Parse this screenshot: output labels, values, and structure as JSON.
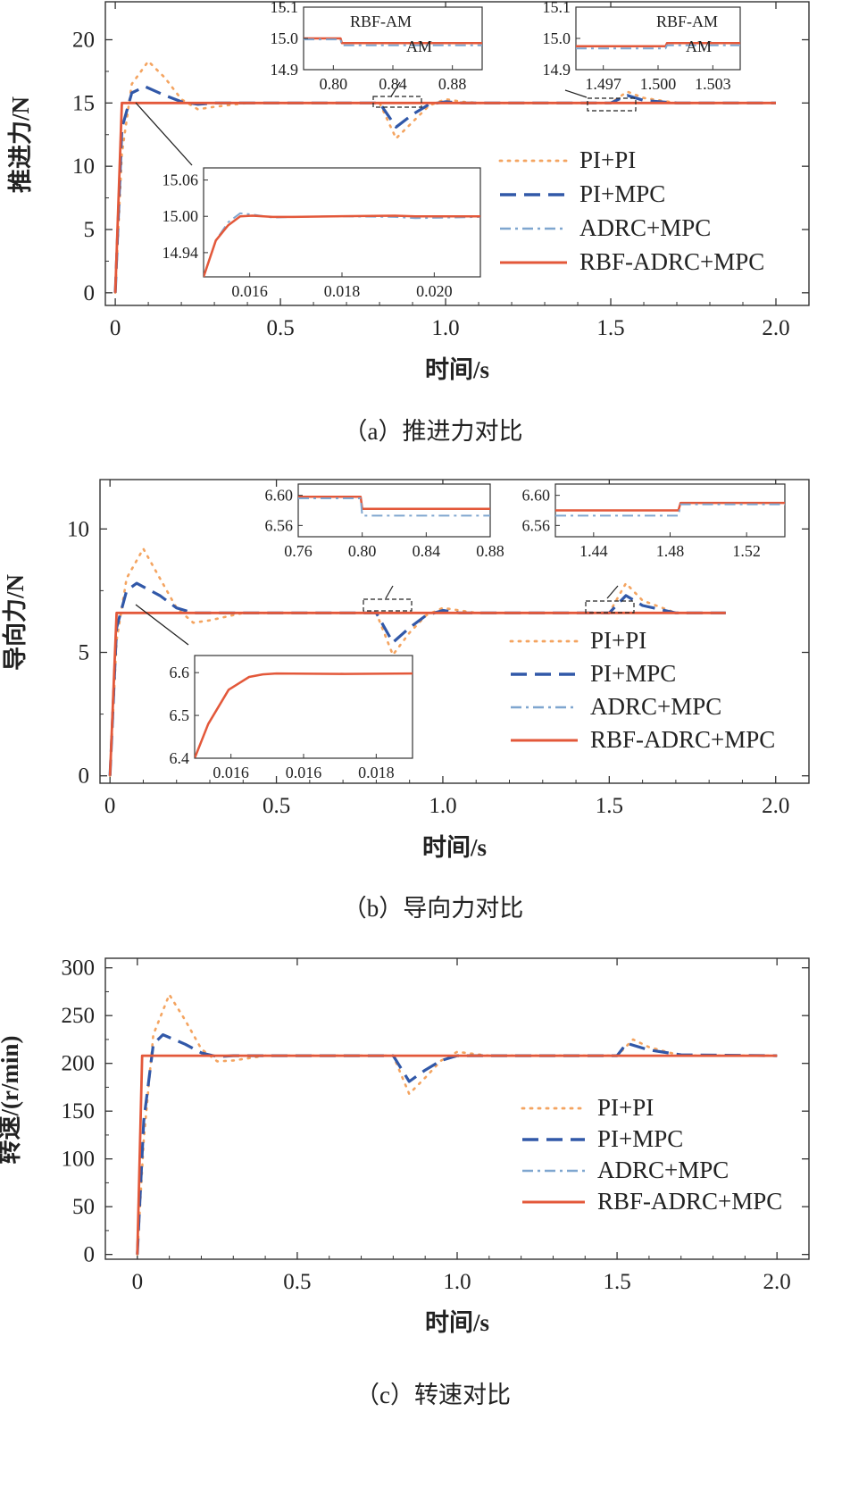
{
  "chart_data": [
    {
      "type": "line",
      "panel": "a",
      "caption": "（a）推进力对比",
      "xlabel": "时间/s",
      "ylabel": "推进力/N",
      "xlim": [
        -0.03,
        2.1
      ],
      "ylim": [
        -1,
        23
      ],
      "xticks": [
        "0",
        "0.5",
        "1.0",
        "1.5",
        "2.0"
      ],
      "yticks": [
        "0",
        "5",
        "10",
        "15",
        "20"
      ],
      "legend_position": "right-middle",
      "series": [
        {
          "name": "PI+PI",
          "color": "#f4a460",
          "x": [
            0,
            0.02,
            0.05,
            0.1,
            0.15,
            0.2,
            0.25,
            0.3,
            0.4,
            0.8,
            0.85,
            0.9,
            0.95,
            1.0,
            1.05,
            1.1,
            1.5,
            1.55,
            1.6,
            1.7,
            2.0
          ],
          "y": [
            0,
            11,
            16.5,
            18.3,
            17,
            15.3,
            14.5,
            14.7,
            15,
            15,
            12.2,
            13.5,
            14.8,
            15.3,
            15.1,
            15,
            15,
            15.9,
            15.4,
            15,
            15
          ]
        },
        {
          "name": "PI+MPC",
          "color": "#3158a8",
          "x": [
            0,
            0.02,
            0.05,
            0.09,
            0.15,
            0.2,
            0.25,
            0.3,
            0.8,
            0.85,
            0.9,
            0.95,
            1.0,
            1.05,
            1.1,
            1.5,
            1.55,
            1.6,
            1.7,
            2.0
          ],
          "y": [
            0,
            13,
            15.8,
            16.3,
            15.6,
            15.1,
            14.9,
            15,
            15,
            13.1,
            14.1,
            14.9,
            15.1,
            15,
            15,
            15,
            15.6,
            15.2,
            15,
            15
          ]
        },
        {
          "name": "ADRC+MPC",
          "color": "#7fa6cf",
          "x": [
            0,
            0.02,
            2.0
          ],
          "y": [
            0,
            15,
            15
          ]
        },
        {
          "name": "RBF-ADRC+MPC",
          "color": "#e3583a",
          "x": [
            0,
            0.02,
            2.0
          ],
          "y": [
            0,
            15,
            15
          ]
        }
      ],
      "insets": [
        {
          "annotations": [
            "RBF-AM",
            "AM"
          ],
          "xticks": [
            "0.80",
            "0.84",
            "0.88"
          ],
          "yticks": [
            "15.1",
            "15.0",
            "14.9"
          ],
          "xlim": [
            0.77,
            0.91
          ],
          "ylim": [
            14.9,
            15.1
          ],
          "series": [
            {
              "name": "RBF-ADRC+MPC",
              "x": [
                0.77,
                0.799,
                0.8,
                0.91
              ],
              "y": [
                15.0,
                15.0,
                14.985,
                14.985
              ]
            },
            {
              "name": "ADRC+MPC",
              "x": [
                0.77,
                0.799,
                0.8,
                0.91
              ],
              "y": [
                14.997,
                14.997,
                14.978,
                14.978
              ]
            }
          ]
        },
        {
          "annotations": [
            "RBF-AM",
            "AM"
          ],
          "xticks": [
            "1.497",
            "1.500",
            "1.503"
          ],
          "yticks": [
            "15.1",
            "15.0",
            "14.9"
          ],
          "xlim": [
            1.494,
            1.505
          ],
          "ylim": [
            14.9,
            15.1
          ],
          "series": [
            {
              "name": "RBF-ADRC+MPC",
              "x": [
                1.494,
                1.5,
                1.5001,
                1.505
              ],
              "y": [
                14.975,
                14.975,
                14.985,
                14.985
              ]
            },
            {
              "name": "ADRC+MPC",
              "x": [
                1.494,
                1.5,
                1.5001,
                1.505
              ],
              "y": [
                14.968,
                14.968,
                14.978,
                14.978
              ]
            }
          ]
        },
        {
          "xticks": [
            "0.016",
            "0.018",
            "0.020"
          ],
          "yticks": [
            "15.06",
            "15.00",
            "14.94"
          ],
          "xlim": [
            0.0138,
            0.0206
          ],
          "ylim": [
            14.9,
            15.08
          ],
          "series": [
            {
              "name": "ADRC+MPC",
              "x": [
                0.0138,
                0.0141,
                0.0144,
                0.0147,
                0.015,
                0.0155,
                0.016,
                0.017,
                0.0185,
                0.019,
                0.0206
              ],
              "y": [
                14.9,
                14.96,
                14.99,
                15.005,
                15.003,
                14.998,
                14.999,
                15.0,
                14.999,
                14.997,
                14.999
              ]
            },
            {
              "name": "RBF-ADRC+MPC",
              "x": [
                0.0138,
                0.0141,
                0.0144,
                0.0147,
                0.015,
                0.0155,
                0.016,
                0.017,
                0.0185,
                0.019,
                0.0206
              ],
              "y": [
                14.9,
                14.96,
                14.985,
                15.0,
                15.001,
                14.999,
                14.999,
                15.0,
                15.001,
                15.0,
                15.0
              ]
            }
          ]
        }
      ]
    },
    {
      "type": "line",
      "panel": "b",
      "caption": "（b）导向力对比",
      "xlabel": "时间/s",
      "ylabel": "导向力/N",
      "xlim": [
        -0.03,
        2.1
      ],
      "ylim": [
        -0.3,
        12
      ],
      "xticks": [
        "0",
        "0.5",
        "1.0",
        "1.5",
        "2.0"
      ],
      "yticks": [
        "0",
        "5",
        "10"
      ],
      "legend_position": "right-middle",
      "series": [
        {
          "name": "PI+PI",
          "color": "#f4a460",
          "x": [
            0,
            0.02,
            0.05,
            0.1,
            0.15,
            0.2,
            0.25,
            0.3,
            0.4,
            0.8,
            0.85,
            0.9,
            0.95,
            1.0,
            1.05,
            1.1,
            1.5,
            1.55,
            1.6,
            1.7,
            1.85
          ],
          "y": [
            0,
            5.5,
            8,
            9.2,
            8,
            6.8,
            6.2,
            6.3,
            6.6,
            6.6,
            4.9,
            5.8,
            6.5,
            6.8,
            6.7,
            6.6,
            6.6,
            7.8,
            7.1,
            6.6,
            6.6
          ]
        },
        {
          "name": "PI+MPC",
          "color": "#3158a8",
          "x": [
            0,
            0.02,
            0.05,
            0.08,
            0.15,
            0.2,
            0.25,
            0.3,
            0.8,
            0.85,
            0.9,
            0.95,
            1.0,
            1.05,
            1.5,
            1.55,
            1.6,
            1.7,
            1.85
          ],
          "y": [
            0,
            6,
            7.5,
            7.8,
            7.3,
            6.8,
            6.6,
            6.6,
            6.6,
            5.4,
            6.0,
            6.5,
            6.7,
            6.6,
            6.6,
            7.3,
            6.9,
            6.6,
            6.6
          ]
        },
        {
          "name": "ADRC+MPC",
          "color": "#7fa6cf",
          "x": [
            0,
            0.02,
            1.85
          ],
          "y": [
            0,
            6.6,
            6.6
          ]
        },
        {
          "name": "RBF-ADRC+MPC",
          "color": "#e3583a",
          "x": [
            0,
            0.02,
            1.85
          ],
          "y": [
            0,
            6.6,
            6.6
          ]
        }
      ],
      "insets": [
        {
          "xticks": [
            "0.76",
            "0.80",
            "0.84",
            "0.88"
          ],
          "yticks": [
            "6.60",
            "6.56"
          ],
          "xlim": [
            0.76,
            0.88
          ],
          "ylim": [
            6.545,
            6.615
          ],
          "series": [
            {
              "name": "RBF-ADRC+MPC",
              "x": [
                0.76,
                0.799,
                0.8,
                0.88
              ],
              "y": [
                6.598,
                6.598,
                6.582,
                6.582
              ]
            },
            {
              "name": "ADRC+MPC",
              "x": [
                0.76,
                0.799,
                0.8,
                0.88
              ],
              "y": [
                6.596,
                6.596,
                6.573,
                6.573
              ]
            }
          ]
        },
        {
          "xticks": [
            "1.44",
            "1.48",
            "1.52"
          ],
          "yticks": [
            "6.60",
            "6.56"
          ],
          "xlim": [
            1.44,
            1.55
          ],
          "ylim": [
            6.545,
            6.615
          ],
          "series": [
            {
              "name": "RBF-ADRC+MPC",
              "x": [
                1.44,
                1.499,
                1.5,
                1.55
              ],
              "y": [
                6.58,
                6.58,
                6.59,
                6.59
              ]
            },
            {
              "name": "ADRC+MPC",
              "x": [
                1.44,
                1.499,
                1.5,
                1.55
              ],
              "y": [
                6.573,
                6.573,
                6.588,
                6.588
              ]
            }
          ]
        },
        {
          "xticks": [
            "0.016",
            "0.016",
            "0.018"
          ],
          "yticks": [
            "6.6",
            "6.5",
            "6.4"
          ],
          "xlim": [
            0.0148,
            0.018
          ],
          "ylim": [
            6.4,
            6.64
          ],
          "series": [
            {
              "name": "RBF-ADRC+MPC",
              "x": [
                0.0148,
                0.015,
                0.0153,
                0.0156,
                0.0158,
                0.016,
                0.017,
                0.018
              ],
              "y": [
                6.4,
                6.48,
                6.56,
                6.59,
                6.596,
                6.598,
                6.597,
                6.598
              ]
            }
          ]
        }
      ]
    },
    {
      "type": "line",
      "panel": "c",
      "caption": "（c）转速对比",
      "xlabel": "时间/s",
      "ylabel": "转速/(r/min)",
      "xlim": [
        -0.1,
        2.1
      ],
      "ylim": [
        -5,
        310
      ],
      "xticks": [
        "0",
        "0.5",
        "1.0",
        "1.5",
        "2.0"
      ],
      "yticks": [
        "0",
        "50",
        "100",
        "150",
        "200",
        "250",
        "300"
      ],
      "legend_position": "right-middle",
      "series": [
        {
          "name": "PI+PI",
          "color": "#f4a460",
          "x": [
            0,
            0.02,
            0.05,
            0.1,
            0.15,
            0.2,
            0.25,
            0.3,
            0.4,
            0.8,
            0.85,
            0.9,
            0.95,
            1.0,
            1.05,
            1.1,
            1.5,
            1.55,
            1.6,
            1.7,
            2.0
          ],
          "y": [
            0,
            120,
            230,
            272,
            245,
            215,
            202,
            203,
            208,
            208,
            168,
            185,
            203,
            212,
            210,
            208,
            208,
            225,
            217,
            208,
            208
          ]
        },
        {
          "name": "PI+MPC",
          "color": "#3158a8",
          "x": [
            0,
            0.02,
            0.05,
            0.08,
            0.15,
            0.2,
            0.25,
            0.3,
            0.8,
            0.85,
            0.9,
            0.95,
            1.0,
            1.05,
            1.5,
            1.53,
            1.6,
            1.7,
            2.0
          ],
          "y": [
            0,
            140,
            220,
            230,
            220,
            211,
            207,
            208,
            208,
            181,
            193,
            203,
            208,
            208,
            208,
            221,
            214,
            209,
            208
          ]
        },
        {
          "name": "ADRC+MPC",
          "color": "#7fa6cf",
          "x": [
            0,
            0.015,
            2.0
          ],
          "y": [
            0,
            208,
            208
          ]
        },
        {
          "name": "RBF-ADRC+MPC",
          "color": "#e3583a",
          "x": [
            0,
            0.015,
            2.0
          ],
          "y": [
            0,
            208,
            208
          ]
        }
      ],
      "insets": []
    }
  ]
}
